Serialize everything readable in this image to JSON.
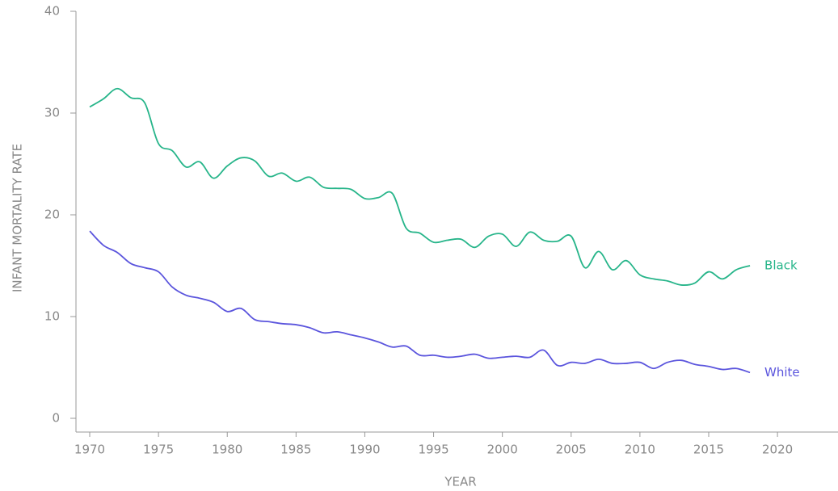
{
  "chart_data": {
    "type": "line",
    "x_label": "YEAR",
    "y_label": "INFANT MORTALITY RATE",
    "x": [
      1970,
      1971,
      1972,
      1973,
      1974,
      1975,
      1976,
      1977,
      1978,
      1979,
      1980,
      1981,
      1982,
      1983,
      1984,
      1985,
      1986,
      1987,
      1988,
      1989,
      1990,
      1991,
      1992,
      1993,
      1994,
      1995,
      1996,
      1997,
      1998,
      1999,
      2000,
      2001,
      2002,
      2003,
      2004,
      2005,
      2006,
      2007,
      2008,
      2009,
      2010,
      2011,
      2012,
      2013,
      2014,
      2015,
      2016,
      2017,
      2018
    ],
    "series": [
      {
        "name": "Black",
        "color": "#27b58a",
        "values": [
          30.6,
          31.4,
          32.4,
          31.5,
          31.0,
          27.0,
          26.3,
          24.7,
          25.2,
          23.6,
          24.8,
          25.6,
          25.3,
          23.8,
          24.1,
          23.3,
          23.7,
          22.7,
          22.6,
          22.5,
          21.6,
          21.7,
          22.1,
          18.7,
          18.2,
          17.3,
          17.5,
          17.6,
          16.8,
          17.9,
          18.1,
          16.9,
          18.3,
          17.5,
          17.4,
          17.9,
          14.8,
          16.4,
          14.6,
          15.5,
          14.1,
          13.7,
          13.5,
          13.1,
          13.3,
          14.4,
          13.7,
          14.6,
          15.0
        ]
      },
      {
        "name": "White",
        "color": "#5b55dd",
        "values": [
          18.4,
          17.0,
          16.3,
          15.2,
          14.8,
          14.4,
          12.9,
          12.1,
          11.8,
          11.4,
          10.5,
          10.8,
          9.7,
          9.5,
          9.3,
          9.2,
          8.9,
          8.4,
          8.5,
          8.2,
          7.9,
          7.5,
          7.0,
          7.1,
          6.2,
          6.2,
          6.0,
          6.1,
          6.3,
          5.9,
          6.0,
          6.1,
          6.0,
          6.7,
          5.2,
          5.5,
          5.4,
          5.8,
          5.4,
          5.4,
          5.5,
          4.9,
          5.5,
          5.7,
          5.3,
          5.1,
          4.8,
          4.9,
          4.5
        ]
      }
    ],
    "xlim": [
      1969,
      2024.4
    ],
    "xticks": [
      1970,
      1975,
      1980,
      1985,
      1990,
      1995,
      2000,
      2005,
      2010,
      2015,
      2020
    ],
    "ylim": [
      -1.35,
      40
    ],
    "yticks": [
      0,
      10,
      20,
      30,
      40
    ]
  }
}
